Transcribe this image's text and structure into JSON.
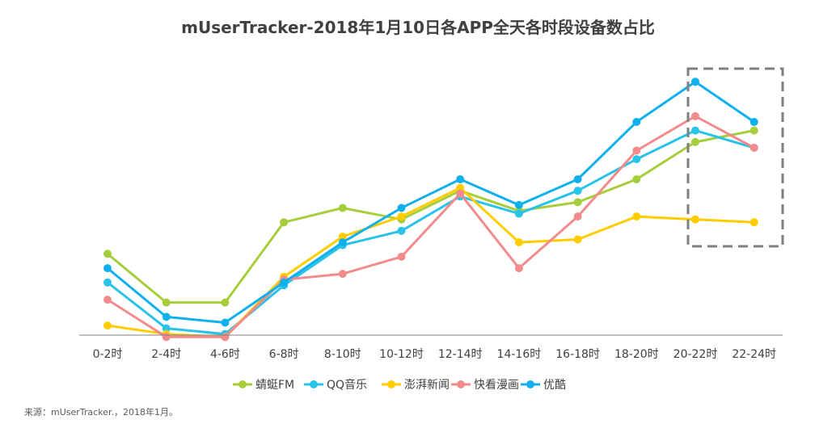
{
  "chart_data": {
    "type": "line",
    "title": "mUserTracker-2018年1月10日各APP全天各时段设备数占比",
    "xlabel": "",
    "ylabel": "",
    "ylim": [
      0,
      100
    ],
    "grid": false,
    "legend_position": "bottom",
    "categories": [
      "0-2时",
      "2-4时",
      "4-6时",
      "6-8时",
      "8-10时",
      "10-12时",
      "12-14时",
      "14-16时",
      "16-18时",
      "18-20时",
      "20-22时",
      "22-24时"
    ],
    "series": [
      {
        "name": "蜻蜓FM",
        "color": "#A5CE3A",
        "values": [
          34,
          17,
          17,
          45,
          50,
          46,
          56,
          49,
          52,
          60,
          73,
          77
        ]
      },
      {
        "name": "QQ音乐",
        "color": "#29C2E8",
        "values": [
          24,
          8,
          6,
          23,
          37,
          42,
          54,
          48,
          56,
          67,
          77,
          71
        ]
      },
      {
        "name": "澎湃新闻",
        "color": "#FFCC00",
        "values": [
          9,
          6,
          5,
          26,
          40,
          47,
          57,
          38,
          39,
          47,
          46,
          45
        ]
      },
      {
        "name": "快看漫画",
        "color": "#F28B8B",
        "values": [
          18,
          5,
          5,
          25,
          27,
          33,
          55,
          29,
          47,
          70,
          82,
          71
        ]
      },
      {
        "name": "优酷",
        "color": "#0FB0EC",
        "values": [
          29,
          12,
          10,
          24,
          38,
          50,
          60,
          51,
          60,
          80,
          94,
          80
        ]
      }
    ]
  },
  "source": "来源：mUserTracker.，2018年1月。"
}
